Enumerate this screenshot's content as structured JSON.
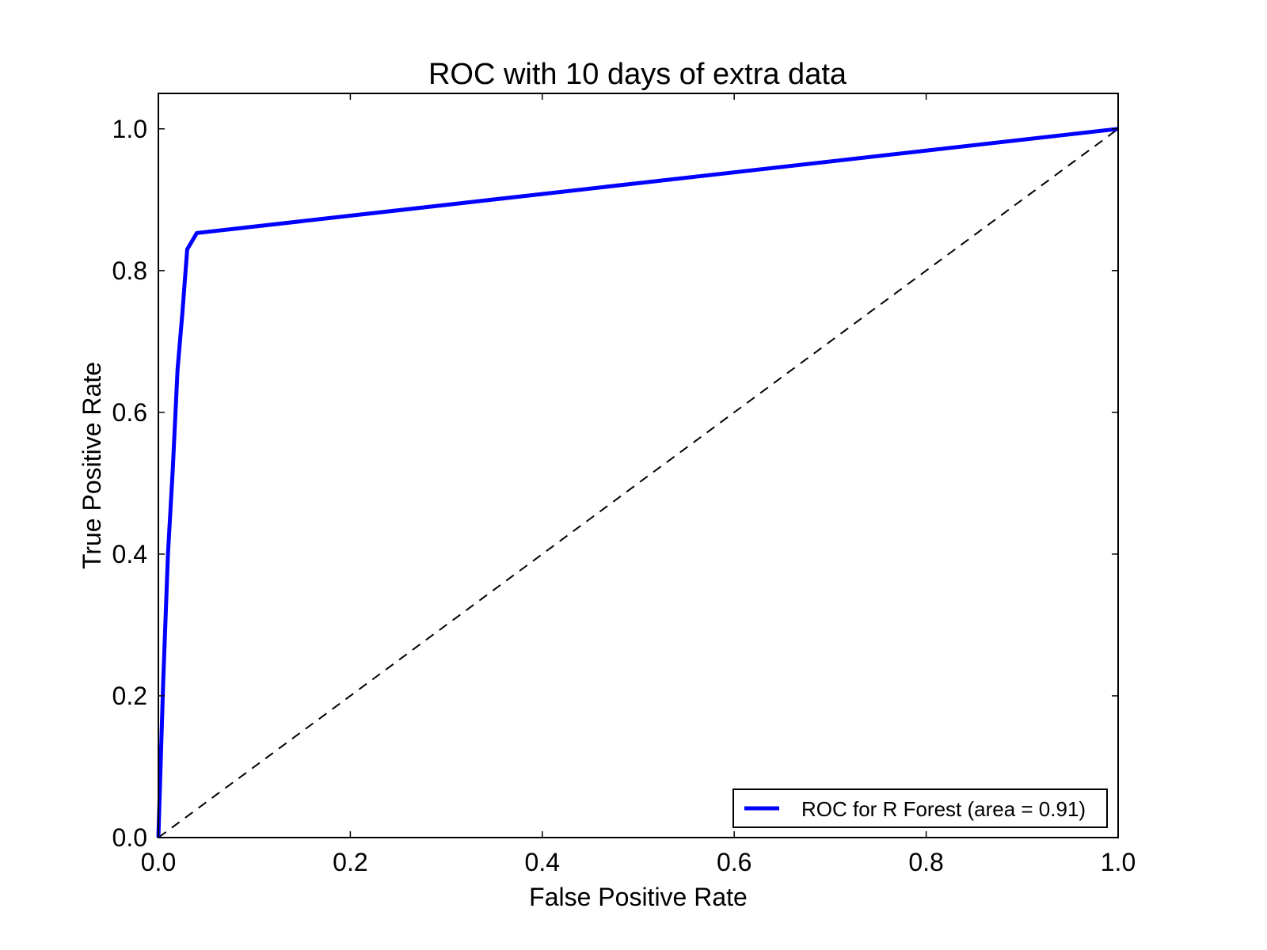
{
  "chart_data": {
    "type": "line",
    "title": "ROC with 10 days of extra data",
    "xlabel": "False Positive Rate",
    "ylabel": "True Positive Rate",
    "xlim": [
      0.0,
      1.0
    ],
    "ylim": [
      0.0,
      1.05
    ],
    "x_ticks": [
      "0.0",
      "0.2",
      "0.4",
      "0.6",
      "0.8",
      "1.0"
    ],
    "y_ticks": [
      "0.0",
      "0.2",
      "0.4",
      "0.6",
      "0.8",
      "1.0"
    ],
    "grid": false,
    "legend_position": "lower-right",
    "series": [
      {
        "name": "ROC for R Forest (area = 0.91)",
        "color": "#0000ff",
        "style": "solid",
        "x": [
          0.0,
          0.005,
          0.01,
          0.015,
          0.02,
          0.025,
          0.03,
          0.04,
          1.0
        ],
        "y": [
          0.0,
          0.22,
          0.4,
          0.52,
          0.66,
          0.74,
          0.83,
          0.853,
          1.0
        ]
      },
      {
        "color": "#000000",
        "style": "dashed",
        "x": [
          0.0,
          1.0
        ],
        "y": [
          0.0,
          1.0
        ]
      }
    ]
  }
}
